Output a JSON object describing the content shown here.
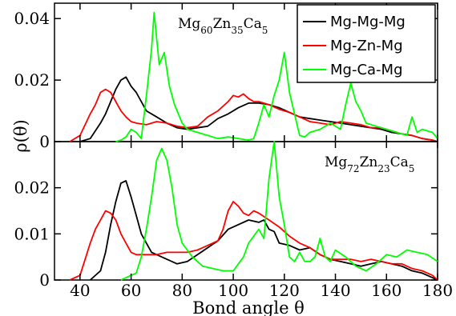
{
  "chart_data": [
    {
      "type": "line",
      "panel": "top",
      "annotation": {
        "base": [
          "Mg",
          "Zn",
          "Ca"
        ],
        "subs": [
          "60",
          "35",
          "5"
        ]
      },
      "xlim": [
        30,
        180
      ],
      "ylim": [
        0,
        0.045
      ],
      "yticks": [
        "0",
        "0.02",
        "0.04"
      ],
      "ytick_values": [
        0,
        0.02,
        0.04
      ],
      "legend": {
        "placement": "top-right"
      },
      "series": [
        {
          "name": "Mg-Mg-Mg",
          "color": "#000000",
          "x": [
            40,
            44,
            48,
            50,
            52,
            54,
            56,
            58,
            60,
            62,
            64,
            66,
            70,
            74,
            78,
            82,
            86,
            90,
            94,
            98,
            102,
            106,
            110,
            114,
            118,
            122,
            126,
            130,
            134,
            138,
            142,
            146,
            150,
            154,
            158,
            162,
            166,
            170,
            174,
            178,
            180
          ],
          "y": [
            0.0,
            0.001,
            0.006,
            0.009,
            0.013,
            0.017,
            0.02,
            0.021,
            0.018,
            0.016,
            0.013,
            0.01,
            0.008,
            0.006,
            0.0045,
            0.004,
            0.0045,
            0.005,
            0.0075,
            0.009,
            0.011,
            0.0125,
            0.0125,
            0.012,
            0.011,
            0.0095,
            0.008,
            0.0075,
            0.007,
            0.0065,
            0.006,
            0.0055,
            0.005,
            0.0045,
            0.004,
            0.003,
            0.0025,
            0.002,
            0.001,
            0.0005,
            0.0
          ]
        },
        {
          "name": "Mg-Zn-Mg",
          "color": "#ff0000",
          "x": [
            36,
            40,
            44,
            46,
            48,
            50,
            52,
            54,
            56,
            58,
            60,
            62,
            66,
            70,
            74,
            78,
            82,
            86,
            90,
            94,
            98,
            100,
            102,
            104,
            106,
            108,
            110,
            114,
            118,
            122,
            126,
            130,
            134,
            138,
            142,
            146,
            150,
            154,
            158,
            162,
            166,
            170,
            174,
            178,
            180
          ],
          "y": [
            0.0,
            0.002,
            0.009,
            0.012,
            0.016,
            0.017,
            0.016,
            0.013,
            0.01,
            0.008,
            0.0065,
            0.006,
            0.0055,
            0.0065,
            0.006,
            0.005,
            0.0045,
            0.005,
            0.008,
            0.01,
            0.013,
            0.015,
            0.0145,
            0.0155,
            0.014,
            0.013,
            0.013,
            0.012,
            0.0105,
            0.0095,
            0.008,
            0.0065,
            0.006,
            0.0055,
            0.0065,
            0.006,
            0.0055,
            0.0045,
            0.0045,
            0.0035,
            0.0025,
            0.002,
            0.001,
            0.0005,
            0.0
          ]
        },
        {
          "name": "Mg-Ca-Mg",
          "color": "#00ff00",
          "x": [
            54,
            56,
            58,
            60,
            62,
            64,
            66,
            68,
            69,
            71,
            73,
            75,
            77,
            80,
            82,
            84,
            86,
            88,
            90,
            94,
            98,
            102,
            106,
            108,
            110,
            112,
            114,
            116,
            118,
            120,
            122,
            124,
            126,
            128,
            130,
            134,
            138,
            142,
            144,
            146,
            148,
            150,
            152,
            156,
            160,
            164,
            168,
            170,
            172,
            174,
            178,
            180
          ],
          "y": [
            0.0,
            0.0005,
            0.0015,
            0.004,
            0.003,
            0.001,
            0.015,
            0.03,
            0.042,
            0.025,
            0.029,
            0.018,
            0.012,
            0.006,
            0.004,
            0.0035,
            0.003,
            0.0025,
            0.002,
            0.001,
            0.0015,
            0.001,
            0.0005,
            0.001,
            0.006,
            0.012,
            0.008,
            0.015,
            0.02,
            0.029,
            0.016,
            0.009,
            0.002,
            0.0015,
            0.003,
            0.004,
            0.006,
            0.004,
            0.012,
            0.019,
            0.013,
            0.01,
            0.006,
            0.005,
            0.004,
            0.003,
            0.002,
            0.008,
            0.003,
            0.004,
            0.003,
            0.001
          ]
        }
      ]
    },
    {
      "type": "line",
      "panel": "bottom",
      "annotation": {
        "base": [
          "Mg",
          "Zn",
          "Ca"
        ],
        "subs": [
          "72",
          "23",
          "5"
        ]
      },
      "xlim": [
        30,
        180
      ],
      "ylim": [
        0,
        0.03
      ],
      "yticks": [
        "0",
        "0.01",
        "0.02"
      ],
      "ytick_values": [
        0,
        0.01,
        0.02
      ],
      "xticks": [
        "40",
        "60",
        "80",
        "100",
        "120",
        "140",
        "160",
        "180"
      ],
      "xtick_values": [
        40,
        60,
        80,
        100,
        120,
        140,
        160,
        180
      ],
      "xlabel": "Bond angle θ",
      "series": [
        {
          "name": "Mg-Mg-Mg",
          "color": "#000000",
          "x": [
            44,
            48,
            50,
            52,
            54,
            56,
            58,
            60,
            62,
            64,
            66,
            68,
            70,
            74,
            78,
            82,
            86,
            90,
            94,
            98,
            102,
            106,
            110,
            112,
            114,
            116,
            118,
            122,
            126,
            130,
            134,
            138,
            142,
            146,
            150,
            154,
            158,
            162,
            166,
            170,
            174,
            178,
            180
          ],
          "y": [
            0.0,
            0.002,
            0.006,
            0.012,
            0.017,
            0.021,
            0.0215,
            0.018,
            0.014,
            0.01,
            0.008,
            0.006,
            0.0055,
            0.0045,
            0.0035,
            0.004,
            0.0055,
            0.007,
            0.0085,
            0.011,
            0.012,
            0.013,
            0.0125,
            0.013,
            0.011,
            0.0105,
            0.008,
            0.0075,
            0.0065,
            0.007,
            0.0055,
            0.0045,
            0.004,
            0.0035,
            0.003,
            0.0035,
            0.004,
            0.0035,
            0.003,
            0.002,
            0.0015,
            0.0005,
            0.0
          ]
        },
        {
          "name": "Mg-Zn-Mg",
          "color": "#ff0000",
          "x": [
            36,
            40,
            44,
            46,
            48,
            50,
            52,
            54,
            56,
            58,
            60,
            62,
            66,
            70,
            74,
            78,
            82,
            86,
            90,
            94,
            96,
            98,
            100,
            102,
            104,
            106,
            108,
            110,
            114,
            118,
            122,
            126,
            130,
            134,
            138,
            142,
            146,
            150,
            154,
            158,
            162,
            166,
            170,
            174,
            178,
            180
          ],
          "y": [
            0.0,
            0.001,
            0.008,
            0.011,
            0.013,
            0.015,
            0.0145,
            0.013,
            0.01,
            0.008,
            0.006,
            0.0055,
            0.0055,
            0.0055,
            0.006,
            0.006,
            0.006,
            0.0065,
            0.0075,
            0.0085,
            0.011,
            0.015,
            0.017,
            0.016,
            0.0145,
            0.014,
            0.015,
            0.0145,
            0.013,
            0.0115,
            0.0095,
            0.008,
            0.007,
            0.0055,
            0.0045,
            0.0045,
            0.0045,
            0.004,
            0.0045,
            0.004,
            0.0035,
            0.0035,
            0.0025,
            0.002,
            0.001,
            0.0
          ]
        },
        {
          "name": "Mg-Ca-Mg",
          "color": "#00ff00",
          "x": [
            56,
            58,
            60,
            62,
            64,
            66,
            68,
            70,
            72,
            74,
            76,
            78,
            80,
            84,
            88,
            92,
            96,
            100,
            104,
            106,
            108,
            110,
            112,
            114,
            116,
            118,
            120,
            122,
            124,
            126,
            128,
            130,
            132,
            134,
            136,
            138,
            140,
            144,
            148,
            152,
            156,
            160,
            164,
            168,
            172,
            176,
            180
          ],
          "y": [
            0.0,
            0.0005,
            0.001,
            0.0015,
            0.005,
            0.011,
            0.018,
            0.026,
            0.0285,
            0.026,
            0.02,
            0.012,
            0.008,
            0.005,
            0.003,
            0.0025,
            0.002,
            0.002,
            0.005,
            0.008,
            0.0095,
            0.011,
            0.009,
            0.022,
            0.03,
            0.018,
            0.012,
            0.005,
            0.004,
            0.006,
            0.004,
            0.004,
            0.005,
            0.009,
            0.005,
            0.004,
            0.0065,
            0.005,
            0.003,
            0.002,
            0.0035,
            0.0055,
            0.005,
            0.0065,
            0.006,
            0.0055,
            0.004
          ]
        }
      ]
    }
  ],
  "shared_ylabel": "ρ(θ)"
}
